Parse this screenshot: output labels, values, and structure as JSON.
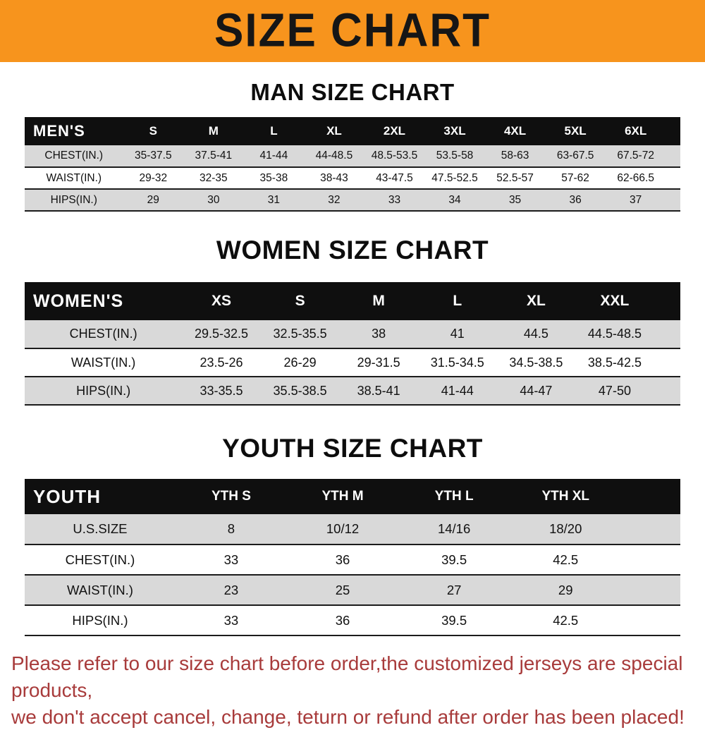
{
  "banner": {
    "title": "SIZE CHART"
  },
  "colors": {
    "banner_bg": "#F7941D",
    "table_header_bg": "#0F0F0F",
    "row_stripe": "#D9D9D9",
    "notice_text": "#A83B3B"
  },
  "sections": [
    {
      "id": "man",
      "heading": "MAN SIZE CHART",
      "table": {
        "header_label": "MEN'S",
        "columns": [
          "S",
          "M",
          "L",
          "XL",
          "2XL",
          "3XL",
          "4XL",
          "5XL",
          "6XL"
        ],
        "rows": [
          {
            "label": "CHEST(IN.)",
            "values": [
              "35-37.5",
              "37.5-41",
              "41-44",
              "44-48.5",
              "48.5-53.5",
              "53.5-58",
              "58-63",
              "63-67.5",
              "67.5-72"
            ]
          },
          {
            "label": "WAIST(IN.)",
            "values": [
              "29-32",
              "32-35",
              "35-38",
              "38-43",
              "43-47.5",
              "47.5-52.5",
              "52.5-57",
              "57-62",
              "62-66.5"
            ]
          },
          {
            "label": "HIPS(IN.)",
            "values": [
              "29",
              "30",
              "31",
              "32",
              "33",
              "34",
              "35",
              "36",
              "37"
            ]
          }
        ]
      }
    },
    {
      "id": "women",
      "heading": "WOMEN SIZE CHART",
      "table": {
        "header_label": "WOMEN'S",
        "columns": [
          "XS",
          "S",
          "M",
          "L",
          "XL",
          "XXL"
        ],
        "rows": [
          {
            "label": "CHEST(IN.)",
            "values": [
              "29.5-32.5",
              "32.5-35.5",
              "38",
              "41",
              "44.5",
              "44.5-48.5"
            ]
          },
          {
            "label": "WAIST(IN.)",
            "values": [
              "23.5-26",
              "26-29",
              "29-31.5",
              "31.5-34.5",
              "34.5-38.5",
              "38.5-42.5"
            ]
          },
          {
            "label": "HIPS(IN.)",
            "values": [
              "33-35.5",
              "35.5-38.5",
              "38.5-41",
              "41-44",
              "44-47",
              "47-50"
            ]
          }
        ]
      }
    },
    {
      "id": "youth",
      "heading": "YOUTH SIZE CHART",
      "table": {
        "header_label": "YOUTH",
        "columns": [
          "YTH S",
          "YTH M",
          "YTH L",
          "YTH XL"
        ],
        "rows": [
          {
            "label": "U.S.SIZE",
            "values": [
              "8",
              "10/12",
              "14/16",
              "18/20"
            ]
          },
          {
            "label": "CHEST(IN.)",
            "values": [
              "33",
              "36",
              "39.5",
              "42.5"
            ]
          },
          {
            "label": "WAIST(IN.)",
            "values": [
              "23",
              "25",
              "27",
              "29"
            ]
          },
          {
            "label": "HIPS(IN.)",
            "values": [
              "33",
              "36",
              "39.5",
              "42.5"
            ]
          }
        ]
      }
    }
  ],
  "footer": {
    "lines": [
      "Please refer to our size chart before order,the customized jerseys are special products,",
      "we don't accept cancel, change, teturn or refund after order has been placed!"
    ]
  }
}
